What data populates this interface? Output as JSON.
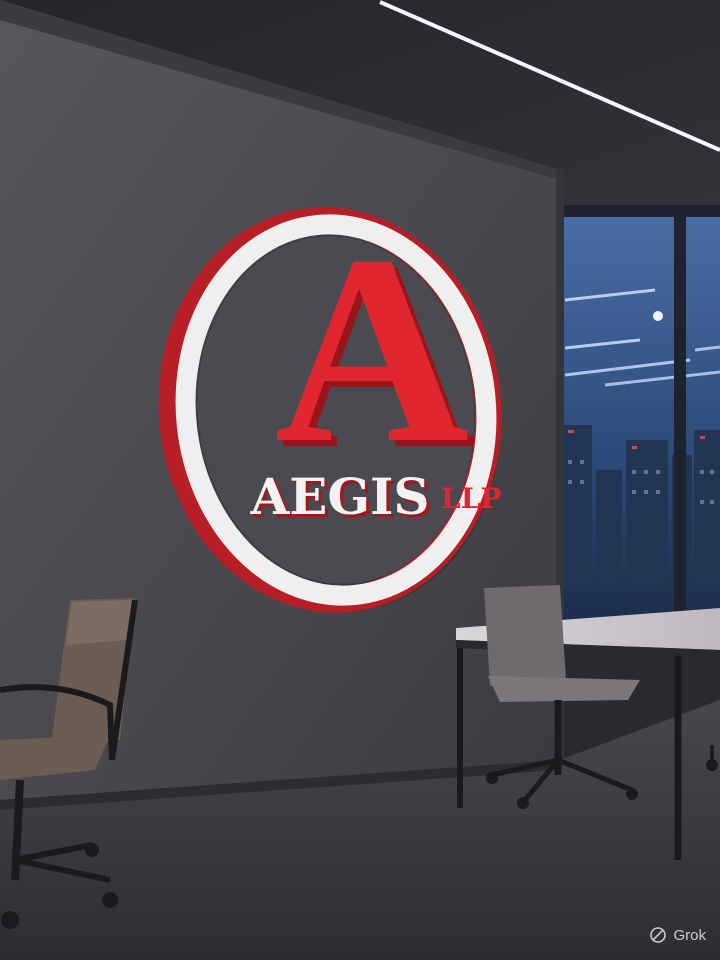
{
  "scene": {
    "description_colors": {
      "wall": "#47474c",
      "ceiling": "#2e2f34",
      "floor": "#3b3a3f",
      "logo_red": "#d9262e",
      "logo_white": "#efefef",
      "city_glass": "#2b4a78"
    }
  },
  "logo": {
    "letter": "A",
    "name": "AEGIS",
    "suffix": "LLP"
  },
  "watermark": {
    "label": "Grok",
    "icon": "grok-logo-icon"
  }
}
